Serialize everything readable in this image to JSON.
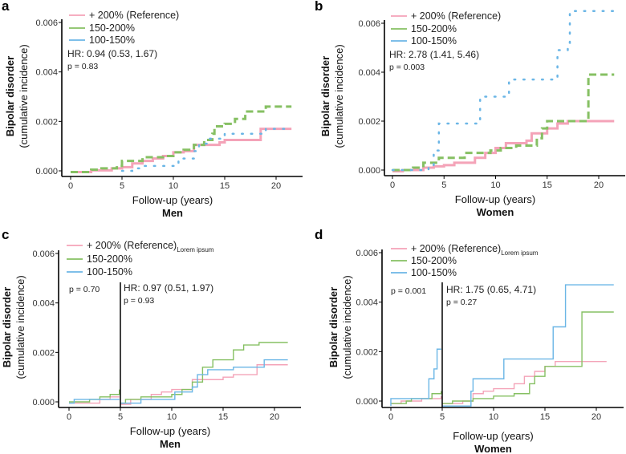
{
  "colors": {
    "reference": "#f4a3b8",
    "mid": "#86c063",
    "low": "#6bb6e6"
  },
  "chart_data": [
    {
      "panel": "a",
      "type": "line",
      "subtitle": "Men",
      "xlabel": "Follow-up (years)",
      "ylabel": "Bipolar disorder",
      "ylabel2": "(cumulative incidence)",
      "xticks": [
        "0",
        "5",
        "10",
        "15",
        "20"
      ],
      "yticks": [
        "0.000",
        "0.002",
        "0.004",
        "0.006"
      ],
      "xlim": [
        -0.5,
        23
      ],
      "ylim": [
        0,
        0.006
      ],
      "line_styles": "dashed/dotted",
      "hr": "HR: 0.94 (0.53, 1.67)",
      "p": "p = 0.83",
      "series": [
        {
          "name": "+ 200% (Reference)",
          "color": "reference",
          "style": "solid",
          "points": [
            [
              0,
              -5e-05
            ],
            [
              2,
              2e-05
            ],
            [
              4,
              0.0001
            ],
            [
              5,
              0.00015
            ],
            [
              6,
              0.0003
            ],
            [
              7,
              0.0004
            ],
            [
              8,
              0.0005
            ],
            [
              9,
              0.0006
            ],
            [
              10,
              0.00075
            ],
            [
              11,
              0.0008
            ],
            [
              12,
              0.00105
            ],
            [
              14.5,
              0.00115
            ],
            [
              15,
              0.00125
            ],
            [
              18.5,
              0.00125
            ],
            [
              18.5,
              0.0017
            ],
            [
              21.5,
              0.0017
            ]
          ]
        },
        {
          "name": "150-200%",
          "color": "mid",
          "style": "dashed",
          "points": [
            [
              0,
              -5e-05
            ],
            [
              2,
              5e-05
            ],
            [
              3,
              0.0001
            ],
            [
              4.5,
              0.0002
            ],
            [
              5,
              0.0004
            ],
            [
              7,
              0.00055
            ],
            [
              9,
              0.0006
            ],
            [
              10,
              0.00075
            ],
            [
              11,
              0.00085
            ],
            [
              12,
              0.00105
            ],
            [
              13,
              0.00125
            ],
            [
              13.8,
              0.0015
            ],
            [
              14,
              0.0018
            ],
            [
              15,
              0.0019
            ],
            [
              16,
              0.0021
            ],
            [
              17,
              0.0024
            ],
            [
              19,
              0.0026
            ],
            [
              21.5,
              0.0026
            ]
          ]
        },
        {
          "name": "100-150%",
          "color": "low",
          "style": "dotted",
          "points": [
            [
              5,
              0
            ],
            [
              6,
              0.0001
            ],
            [
              7,
              0.0002
            ],
            [
              10,
              0.0002
            ],
            [
              10.5,
              0.0005
            ],
            [
              12,
              0.0008
            ],
            [
              12.5,
              0.0011
            ],
            [
              13.5,
              0.0013
            ],
            [
              15,
              0.0015
            ],
            [
              18.5,
              0.0015
            ],
            [
              19,
              0.0017
            ],
            [
              21.5,
              0.0017
            ]
          ]
        }
      ]
    },
    {
      "panel": "b",
      "type": "line",
      "subtitle": "Women",
      "xlabel": "Follow-up (years)",
      "ylabel": "Bipolar disorder",
      "ylabel2": "(cumulative incidence)",
      "xticks": [
        "0",
        "5",
        "10",
        "15",
        "20"
      ],
      "yticks": [
        "0.000",
        "0.002",
        "0.004",
        "0.006"
      ],
      "xlim": [
        -0.5,
        23
      ],
      "ylim": [
        0,
        0.006
      ],
      "line_styles": "dashed/dotted",
      "hr": "HR: 2.78 (1.41, 5.46)",
      "p": "p = 0.003",
      "series": [
        {
          "name": "+ 200% (Reference)",
          "color": "reference",
          "style": "solid",
          "points": [
            [
              0,
              -5e-05
            ],
            [
              1,
              0
            ],
            [
              3,
              0.0001
            ],
            [
              4,
              0.00015
            ],
            [
              5,
              0.0002
            ],
            [
              6,
              0.0003
            ],
            [
              8,
              0.0005
            ],
            [
              9,
              0.0007
            ],
            [
              10,
              0.0009
            ],
            [
              11,
              0.0011
            ],
            [
              13,
              0.0012
            ],
            [
              13.5,
              0.0015
            ],
            [
              15,
              0.0017
            ],
            [
              16,
              0.0019
            ],
            [
              17,
              0.002
            ],
            [
              21.5,
              0.002
            ]
          ]
        },
        {
          "name": "150-200%",
          "color": "mid",
          "style": "dashed",
          "points": [
            [
              0,
              0
            ],
            [
              2,
              0.0001
            ],
            [
              3,
              0.0003
            ],
            [
              4.5,
              0.0005
            ],
            [
              7,
              0.0007
            ],
            [
              9.5,
              0.0008
            ],
            [
              10.5,
              0.0009
            ],
            [
              12,
              0.001
            ],
            [
              14,
              0.0013
            ],
            [
              14.5,
              0.0017
            ],
            [
              15,
              0.002
            ],
            [
              19,
              0.002
            ],
            [
              19,
              0.0039
            ],
            [
              21.5,
              0.0039
            ]
          ]
        },
        {
          "name": "100-150%",
          "color": "low",
          "style": "dotted",
          "points": [
            [
              0,
              0
            ],
            [
              3.5,
              0.0001
            ],
            [
              4,
              0.0008
            ],
            [
              4.5,
              0.0019
            ],
            [
              8,
              0.0019
            ],
            [
              8.5,
              0.003
            ],
            [
              11,
              0.003
            ],
            [
              11.3,
              0.0037
            ],
            [
              16,
              0.0037
            ],
            [
              16,
              0.0049
            ],
            [
              17,
              0.0052
            ],
            [
              17.2,
              0.0065
            ],
            [
              21.5,
              0.0065
            ]
          ]
        }
      ]
    },
    {
      "panel": "c",
      "type": "line",
      "subtitle": "Men",
      "xlabel": "Follow-up (years)",
      "ylabel": "Bipolar disorder",
      "ylabel2": "(cumulative incidence)",
      "xticks": [
        "0",
        "5",
        "10",
        "15",
        "20"
      ],
      "yticks": [
        "0.000",
        "0.002",
        "0.004",
        "0.006"
      ],
      "xlim": [
        -0.5,
        23
      ],
      "ylim": [
        0,
        0.006
      ],
      "line_styles": "solid",
      "landmark_x": 5,
      "legend_suffix": "Lorem ipsum",
      "p_early": "p = 0.70",
      "hr": "HR: 0.97 (0.51, 1.97)",
      "p": "p = 0.93",
      "series": [
        {
          "name": "+ 200% (Reference)",
          "color": "reference",
          "style": "solid",
          "segments": [
            [
              [
                0,
                -5e-05
              ],
              [
                2,
                -5e-05
              ],
              [
                3,
                0.0001
              ],
              [
                4,
                0.0002
              ],
              [
                4.9,
                0.0002
              ]
            ],
            [
              [
                5,
                -0.0001
              ],
              [
                6,
                0.0001
              ],
              [
                8,
                0.0003
              ],
              [
                9,
                0.0004
              ],
              [
                10,
                0.0005
              ],
              [
                12,
                0.0009
              ],
              [
                14,
                0.0009
              ],
              [
                15,
                0.001
              ],
              [
                16,
                0.0011
              ],
              [
                18.3,
                0.0011
              ],
              [
                18.3,
                0.0015
              ],
              [
                21.3,
                0.0015
              ]
            ]
          ]
        },
        {
          "name": "150-200%",
          "color": "mid",
          "style": "solid",
          "segments": [
            [
              [
                0,
                0
              ],
              [
                1,
                0
              ],
              [
                2,
                0.0001
              ],
              [
                3,
                0.0002
              ],
              [
                4,
                0.0003
              ],
              [
                4.9,
                0.0005
              ]
            ],
            [
              [
                5,
                -5e-05
              ],
              [
                5.5,
                0.0001
              ],
              [
                7,
                0.0002
              ],
              [
                10,
                0.0003
              ],
              [
                11,
                0.0005
              ],
              [
                12,
                0.0008
              ],
              [
                13,
                0.0014
              ],
              [
                14,
                0.0017
              ],
              [
                16,
                0.0021
              ],
              [
                17,
                0.0023
              ],
              [
                18.5,
                0.0024
              ],
              [
                21.3,
                0.0024
              ]
            ]
          ]
        },
        {
          "name": "100-150%",
          "color": "low",
          "style": "solid",
          "segments": [
            [
              [
                0,
                -5e-05
              ],
              [
                0.5,
                0.0001
              ],
              [
                4.9,
                0.0001
              ]
            ],
            [
              [
                5,
                -5e-05
              ],
              [
                7,
                0.0001
              ],
              [
                10,
                0.0001
              ],
              [
                10.3,
                0.0004
              ],
              [
                12,
                0.0006
              ],
              [
                12.5,
                0.0011
              ],
              [
                13.5,
                0.0013
              ],
              [
                16,
                0.0014
              ],
              [
                18.5,
                0.0014
              ],
              [
                19,
                0.0017
              ],
              [
                21.3,
                0.0017
              ]
            ]
          ]
        }
      ]
    },
    {
      "panel": "d",
      "type": "line",
      "subtitle": "Women",
      "xlabel": "Follow-up (years)",
      "ylabel": "Bipolar disorder",
      "ylabel2": "(cumulative incidence)",
      "xticks": [
        "0",
        "5",
        "10",
        "15",
        "20"
      ],
      "yticks": [
        "0.000",
        "0.002",
        "0.004",
        "0.006"
      ],
      "xlim": [
        -0.5,
        23
      ],
      "ylim": [
        0,
        0.006
      ],
      "line_styles": "solid",
      "landmark_x": 5,
      "legend_suffix": "Lorem ipsum",
      "p_early": "p = 0.001",
      "hr": "HR: 1.75 (0.65, 4.71)",
      "p": "p = 0.27",
      "series": [
        {
          "name": "+ 200% (Reference)",
          "color": "reference",
          "style": "solid",
          "segments": [
            [
              [
                0,
                -0.0001
              ],
              [
                1,
                0
              ],
              [
                3,
                0.0001
              ],
              [
                4,
                0.0001
              ],
              [
                4.9,
                0.0002
              ]
            ],
            [
              [
                5,
                -0.0001
              ],
              [
                7,
                0
              ],
              [
                8,
                0.0003
              ],
              [
                9,
                0.0004
              ],
              [
                10,
                0.0005
              ],
              [
                12,
                0.0007
              ],
              [
                13,
                0.001
              ],
              [
                14,
                0.0012
              ],
              [
                15,
                0.0014
              ],
              [
                16,
                0.0016
              ],
              [
                21,
                0.0016
              ]
            ]
          ]
        },
        {
          "name": "150-200%",
          "color": "mid",
          "style": "solid",
          "segments": [
            [
              [
                0,
                -0.0001
              ],
              [
                1.5,
                0
              ],
              [
                2,
                0.0001
              ],
              [
                3,
                0.0001
              ],
              [
                4,
                0.0003
              ],
              [
                4.9,
                0.0004
              ]
            ],
            [
              [
                5,
                -0.0001
              ],
              [
                6,
                0
              ],
              [
                7.8,
                0
              ],
              [
                8,
                0.0001
              ],
              [
                10,
                0.0002
              ],
              [
                12,
                0.0003
              ],
              [
                13.5,
                0.0007
              ],
              [
                14,
                0.001
              ],
              [
                15,
                0.0014
              ],
              [
                18.6,
                0.0014
              ],
              [
                18.6,
                0.0036
              ],
              [
                21.7,
                0.0036
              ]
            ]
          ]
        },
        {
          "name": "100-150%",
          "color": "low",
          "style": "solid",
          "segments": [
            [
              [
                0,
                -0.0002
              ],
              [
                0,
                0.0001
              ],
              [
                3.6,
                0.0001
              ],
              [
                3.7,
                0.0009
              ],
              [
                4.2,
                0.0013
              ],
              [
                4.5,
                0.0021
              ],
              [
                4.9,
                0.0021
              ]
            ],
            [
              [
                5,
                -0.0002
              ],
              [
                7.8,
                -0.0002
              ],
              [
                7.8,
                0.0004
              ],
              [
                8,
                0.0009
              ],
              [
                11,
                0.0009
              ],
              [
                11,
                0.0017
              ],
              [
                15.8,
                0.0017
              ],
              [
                15.8,
                0.003
              ],
              [
                17,
                0.003
              ],
              [
                17,
                0.0047
              ],
              [
                21.7,
                0.0047
              ]
            ]
          ]
        }
      ]
    }
  ]
}
